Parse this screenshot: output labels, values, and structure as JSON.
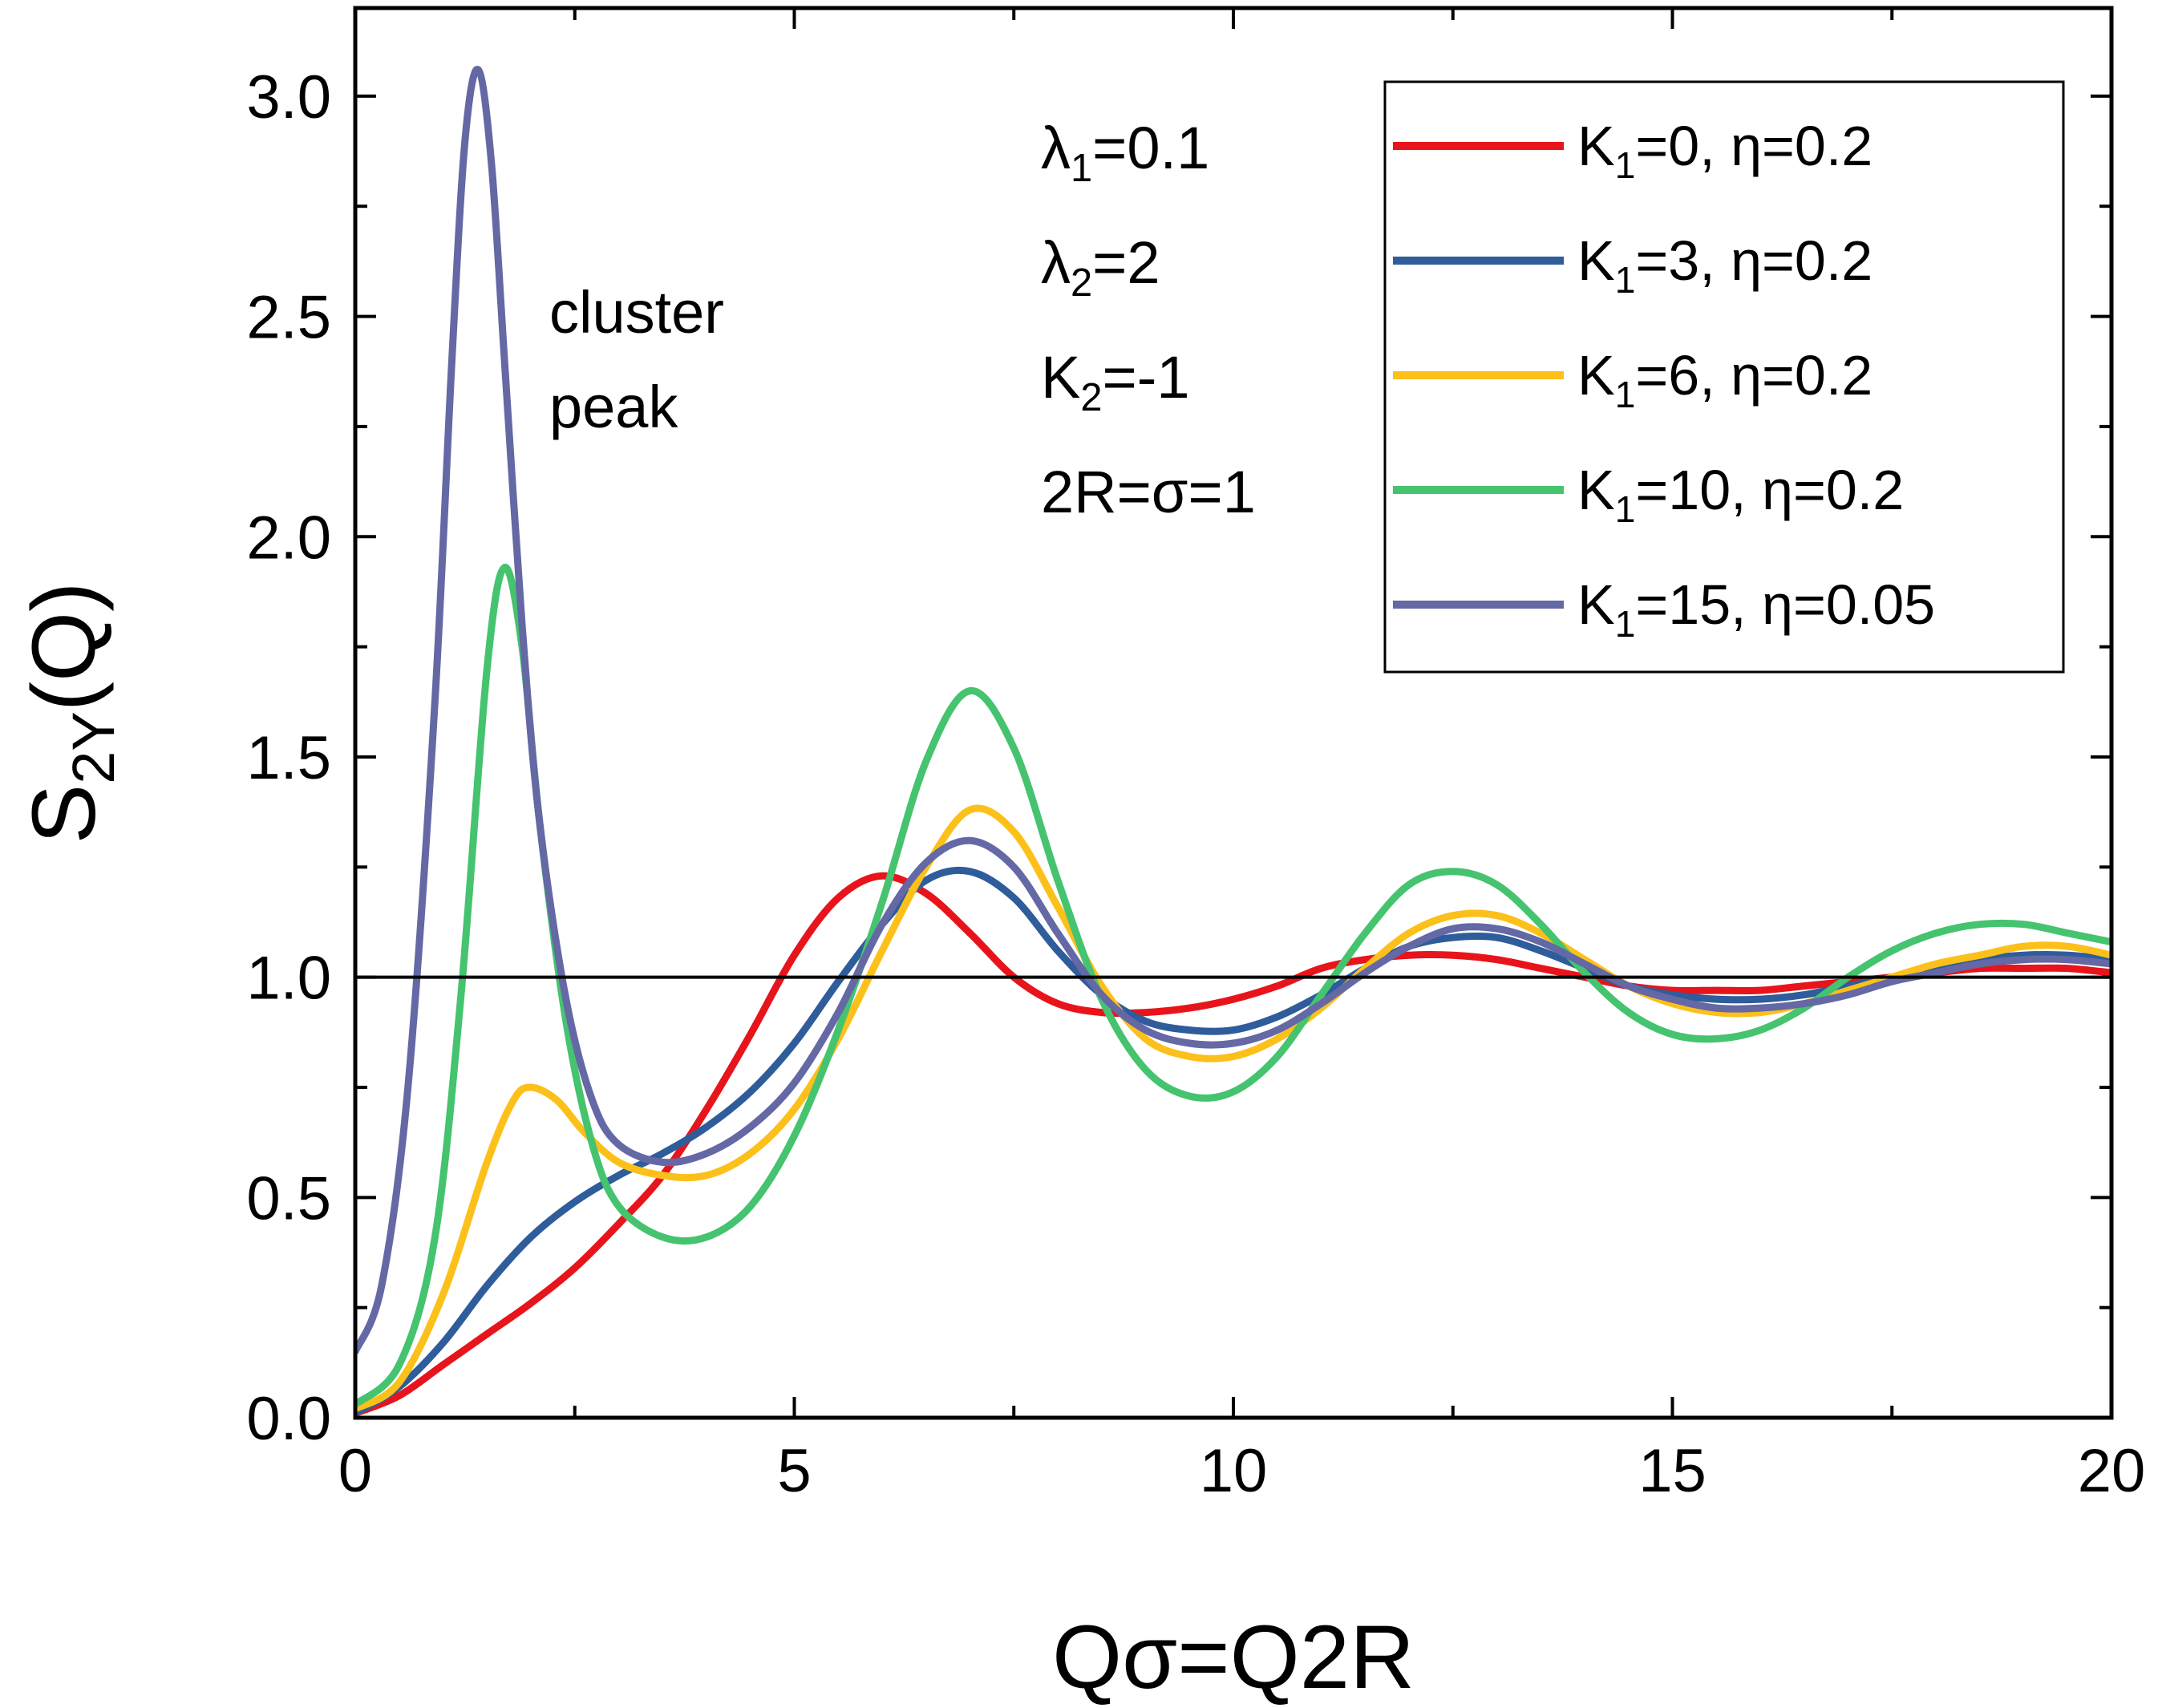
{
  "chart_data": {
    "type": "line",
    "xlabel": "Qσ=Q2R",
    "ylabel": {
      "base": "S",
      "sub": "2Y",
      "tail": "(Q)"
    },
    "xlim": [
      0,
      20
    ],
    "ylim": [
      0,
      3.2
    ],
    "xticks": [
      0,
      5,
      10,
      15,
      20
    ],
    "xtick_labels": [
      "0",
      "5",
      "10",
      "15",
      "20"
    ],
    "xminor": [
      2.5,
      7.5,
      12.5,
      17.5
    ],
    "yticks": [
      0,
      0.5,
      1.0,
      1.5,
      2.0,
      2.5,
      3.0
    ],
    "ytick_labels": [
      "0.0",
      "0.5",
      "1.0",
      "1.5",
      "2.0",
      "2.5",
      "3.0"
    ],
    "yminor": [
      0.25,
      0.75,
      1.25,
      1.75,
      2.25,
      2.75
    ],
    "grid": false,
    "reference_line": {
      "y": 1.0,
      "color": "#000000"
    },
    "legend_placement": "top-right",
    "annotations": [
      {
        "id": "cluster",
        "lines": [
          "cluster",
          "peak"
        ]
      },
      {
        "id": "param-lambda1",
        "base": "λ",
        "sub": "1",
        "tail": "=0.1"
      },
      {
        "id": "param-lambda2",
        "base": "λ",
        "sub": "2",
        "tail": "=2"
      },
      {
        "id": "param-k2",
        "base": "K",
        "sub": "2",
        "tail": "=-1"
      },
      {
        "id": "param-2r",
        "base": "2R=σ=1",
        "sub": "",
        "tail": ""
      }
    ],
    "series": [
      {
        "name": "K1=0, η=0.2",
        "label": {
          "base": "K",
          "sub": "1",
          "tail": "=0, η=0.2"
        },
        "color": "#e8141b",
        "x": [
          0,
          0.5,
          1.0,
          1.5,
          2.0,
          2.5,
          3.0,
          3.5,
          4.0,
          4.5,
          5.0,
          5.5,
          6.0,
          6.5,
          7.0,
          7.5,
          8.0,
          8.5,
          9.0,
          9.5,
          10.0,
          10.5,
          11.0,
          11.5,
          12.0,
          12.5,
          13.0,
          13.5,
          14.0,
          14.5,
          15.0,
          15.5,
          16.0,
          16.5,
          17.0,
          17.5,
          18.0,
          18.5,
          19.0,
          19.5,
          20.0
        ],
        "y": [
          0.01,
          0.05,
          0.12,
          0.19,
          0.26,
          0.34,
          0.44,
          0.55,
          0.7,
          0.87,
          1.05,
          1.18,
          1.23,
          1.19,
          1.1,
          1.0,
          0.94,
          0.92,
          0.92,
          0.93,
          0.95,
          0.98,
          1.02,
          1.04,
          1.05,
          1.05,
          1.04,
          1.02,
          1.0,
          0.98,
          0.97,
          0.97,
          0.97,
          0.98,
          0.99,
          1.0,
          1.01,
          1.02,
          1.02,
          1.02,
          1.01
        ]
      },
      {
        "name": "K1=3, η=0.2",
        "label": {
          "base": "K",
          "sub": "1",
          "tail": "=3, η=0.2"
        },
        "color": "#2f5c9a",
        "x": [
          0,
          0.5,
          1.0,
          1.5,
          2.0,
          2.5,
          3.0,
          3.5,
          4.0,
          4.5,
          5.0,
          5.5,
          6.0,
          6.5,
          7.0,
          7.5,
          8.0,
          8.5,
          9.0,
          9.5,
          10.0,
          10.5,
          11.0,
          11.5,
          12.0,
          12.5,
          13.0,
          13.5,
          14.0,
          14.5,
          15.0,
          15.5,
          16.0,
          16.5,
          17.0,
          17.5,
          18.0,
          18.5,
          19.0,
          19.5,
          20.0
        ],
        "y": [
          0.01,
          0.07,
          0.17,
          0.3,
          0.41,
          0.49,
          0.55,
          0.6,
          0.66,
          0.74,
          0.85,
          0.99,
          1.12,
          1.22,
          1.24,
          1.18,
          1.06,
          0.96,
          0.9,
          0.88,
          0.88,
          0.91,
          0.96,
          1.02,
          1.07,
          1.09,
          1.09,
          1.06,
          1.02,
          0.98,
          0.96,
          0.95,
          0.95,
          0.96,
          0.98,
          1.0,
          1.02,
          1.04,
          1.05,
          1.05,
          1.04
        ]
      },
      {
        "name": "K1=6, η=0.2",
        "label": {
          "base": "K",
          "sub": "1",
          "tail": "=6, η=0.2"
        },
        "color": "#fcc01a",
        "x": [
          0,
          0.5,
          1.0,
          1.5,
          1.8,
          2.0,
          2.3,
          2.6,
          3.0,
          3.5,
          4.0,
          4.5,
          5.0,
          5.5,
          6.0,
          6.5,
          7.0,
          7.5,
          8.0,
          8.5,
          9.0,
          9.5,
          10.0,
          10.5,
          11.0,
          11.5,
          12.0,
          12.5,
          13.0,
          13.5,
          14.0,
          14.5,
          15.0,
          15.5,
          16.0,
          16.5,
          17.0,
          17.5,
          18.0,
          18.5,
          19.0,
          19.5,
          20.0
        ],
        "y": [
          0.02,
          0.08,
          0.28,
          0.58,
          0.72,
          0.75,
          0.72,
          0.65,
          0.58,
          0.55,
          0.55,
          0.6,
          0.7,
          0.86,
          1.06,
          1.25,
          1.38,
          1.33,
          1.16,
          0.98,
          0.86,
          0.82,
          0.82,
          0.86,
          0.93,
          1.02,
          1.1,
          1.14,
          1.14,
          1.1,
          1.04,
          0.98,
          0.94,
          0.92,
          0.92,
          0.94,
          0.97,
          1.0,
          1.03,
          1.05,
          1.07,
          1.07,
          1.05
        ]
      },
      {
        "name": "K1=10, η=0.2",
        "label": {
          "base": "K",
          "sub": "1",
          "tail": "=10, η=0.2"
        },
        "color": "#45c36f",
        "x": [
          0,
          0.5,
          0.9,
          1.2,
          1.5,
          1.7,
          1.9,
          2.1,
          2.4,
          2.7,
          3.0,
          3.5,
          4.0,
          4.5,
          5.0,
          5.5,
          6.0,
          6.5,
          7.0,
          7.5,
          8.0,
          8.5,
          9.0,
          9.5,
          10.0,
          10.5,
          11.0,
          11.5,
          12.0,
          12.5,
          13.0,
          13.5,
          14.0,
          14.5,
          15.0,
          15.5,
          16.0,
          16.5,
          17.0,
          17.5,
          18.0,
          18.5,
          19.0,
          19.5,
          20.0
        ],
        "y": [
          0.03,
          0.12,
          0.4,
          0.95,
          1.7,
          1.93,
          1.75,
          1.35,
          0.9,
          0.62,
          0.48,
          0.41,
          0.41,
          0.48,
          0.64,
          0.88,
          1.17,
          1.49,
          1.65,
          1.52,
          1.22,
          0.95,
          0.79,
          0.73,
          0.74,
          0.82,
          0.96,
          1.1,
          1.21,
          1.24,
          1.21,
          1.12,
          1.01,
          0.92,
          0.87,
          0.86,
          0.88,
          0.93,
          1.0,
          1.06,
          1.1,
          1.12,
          1.12,
          1.1,
          1.08
        ]
      },
      {
        "name": "K1=15, η=0.05",
        "label": {
          "base": "K",
          "sub": "1",
          "tail": "=15, η=0.05"
        },
        "color": "#6468a4",
        "x": [
          0,
          0.3,
          0.6,
          0.9,
          1.1,
          1.25,
          1.4,
          1.55,
          1.7,
          1.9,
          2.1,
          2.4,
          2.7,
          3.0,
          3.5,
          4.0,
          4.5,
          5.0,
          5.5,
          6.0,
          6.5,
          7.0,
          7.5,
          8.0,
          8.5,
          9.0,
          9.5,
          10.0,
          10.5,
          11.0,
          11.5,
          12.0,
          12.5,
          13.0,
          13.5,
          14.0,
          14.5,
          15.0,
          15.5,
          16.0,
          16.5,
          17.0,
          17.5,
          18.0,
          18.5,
          19.0,
          19.5,
          20.0
        ],
        "y": [
          0.15,
          0.3,
          0.75,
          1.6,
          2.4,
          2.9,
          3.06,
          2.85,
          2.4,
          1.8,
          1.35,
          0.95,
          0.72,
          0.62,
          0.58,
          0.6,
          0.66,
          0.76,
          0.92,
          1.12,
          1.26,
          1.31,
          1.25,
          1.1,
          0.96,
          0.88,
          0.85,
          0.85,
          0.88,
          0.94,
          1.01,
          1.07,
          1.11,
          1.11,
          1.08,
          1.03,
          0.98,
          0.95,
          0.93,
          0.93,
          0.94,
          0.96,
          0.99,
          1.01,
          1.03,
          1.04,
          1.04,
          1.03
        ]
      }
    ]
  }
}
